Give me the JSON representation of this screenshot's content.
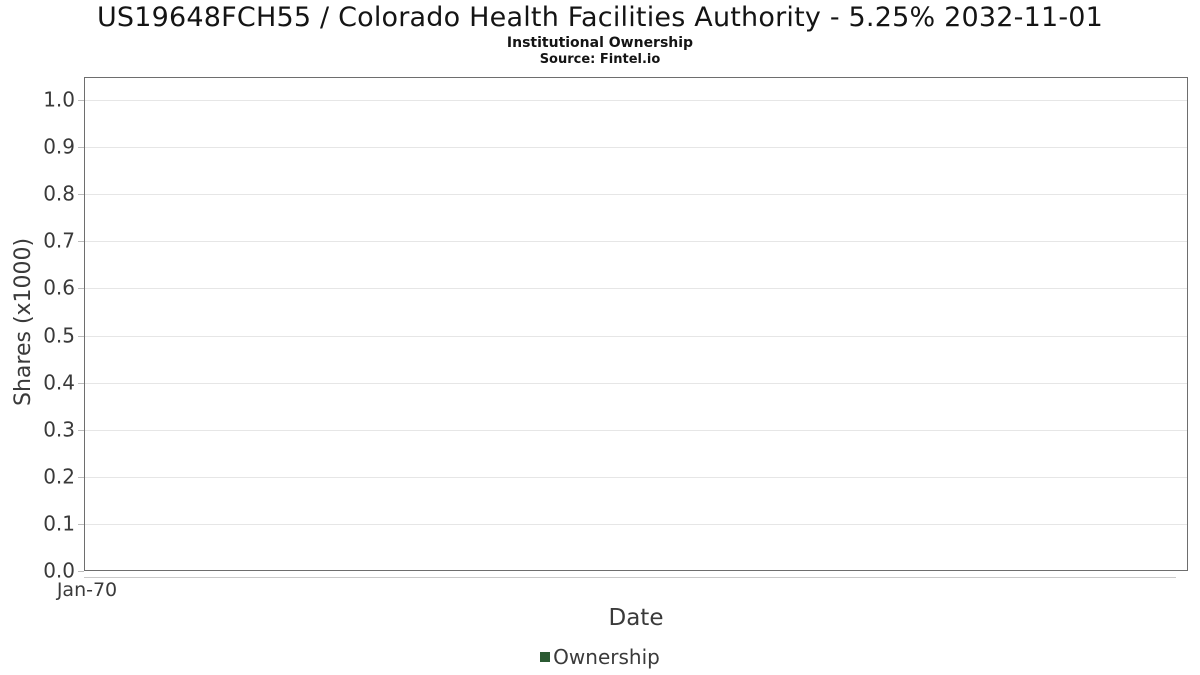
{
  "chart_data": {
    "type": "line",
    "title": "US19648FCH55 / Colorado Health Facilities Authority - 5.25% 2032-11-01",
    "subtitle": "Institutional Ownership",
    "source": "Source: Fintel.io",
    "xlabel": "Date",
    "ylabel": "Shares (x1000)",
    "x_tick_labels": [
      "Jan-70"
    ],
    "y_tick_labels": [
      "0.0",
      "0.1",
      "0.2",
      "0.3",
      "0.4",
      "0.5",
      "0.6",
      "0.7",
      "0.8",
      "0.9",
      "1.0"
    ],
    "ylim": [
      0.0,
      1.0
    ],
    "grid": true,
    "legend_position": "bottom",
    "legend": {
      "entries": [
        {
          "label": "Ownership",
          "color": "#2b5a32"
        }
      ]
    },
    "series": [
      {
        "name": "Ownership",
        "color": "#2b5a32",
        "x": [],
        "values": []
      }
    ]
  },
  "colors": {
    "plot_border": "#6e6e6e",
    "gridline": "#e6e6e6",
    "tick": "#bdbdbd",
    "axis_line": "#c9c9c9",
    "title_text": "#141414",
    "axis_text": "#3a3a3a",
    "background": "#ffffff"
  }
}
